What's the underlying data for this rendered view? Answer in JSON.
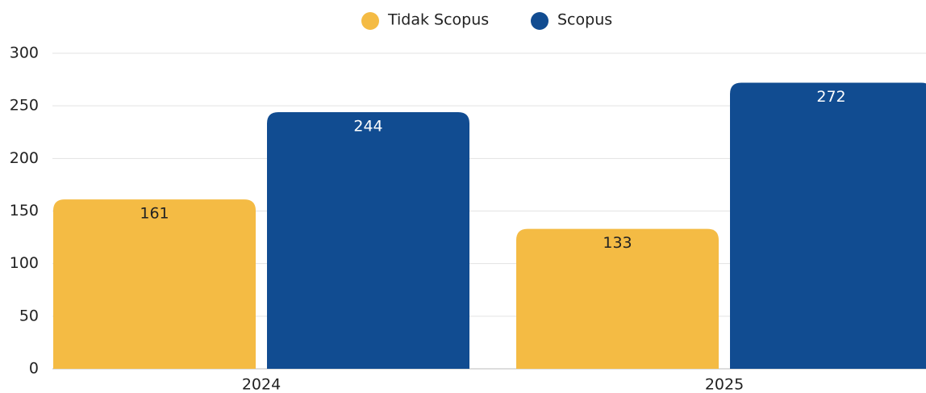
{
  "chart_data": {
    "type": "bar",
    "categories": [
      "2024",
      "2025"
    ],
    "series": [
      {
        "name": "Tidak Scopus",
        "color": "#f4bb44",
        "values": [
          161,
          133
        ]
      },
      {
        "name": "Scopus",
        "color": "#114c91",
        "values": [
          244,
          272
        ]
      }
    ],
    "ylim": [
      0,
      300
    ],
    "yticks": [
      0,
      50,
      100,
      150,
      200,
      250,
      300
    ],
    "grid": true,
    "legend": "top"
  }
}
